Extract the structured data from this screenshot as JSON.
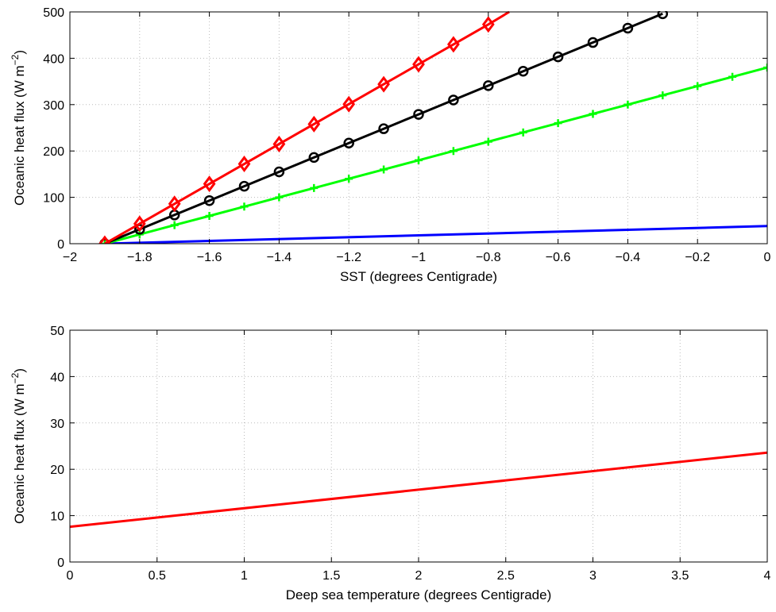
{
  "chart_data": [
    {
      "type": "line",
      "xlabel": "SST (degrees Centigrade)",
      "ylabel_main": "Oceanic heat flux (W m",
      "ylabel_sup": "−2",
      "ylabel_close": ")",
      "xlim": [
        -2,
        0
      ],
      "ylim": [
        0,
        500
      ],
      "xticks": [
        -2,
        -1.8,
        -1.6,
        -1.4,
        -1.2,
        -1,
        -0.8,
        -0.6,
        -0.4,
        -0.2,
        0
      ],
      "xtick_labels": [
        "−2",
        "−1.8",
        "−1.6",
        "−1.4",
        "−1.2",
        "−1",
        "−0.8",
        "−0.6",
        "−0.4",
        "−0.2",
        "0"
      ],
      "yticks": [
        0,
        100,
        200,
        300,
        400,
        500
      ],
      "ytick_labels": [
        "0",
        "100",
        "200",
        "300",
        "400",
        "500"
      ],
      "grid": true,
      "series": [
        {
          "color": "#0000ff",
          "marker": "none",
          "x": [
            -1.9,
            0
          ],
          "y": [
            0,
            38
          ]
        },
        {
          "color": "#00ff00",
          "marker": "plus",
          "x": [
            -1.9,
            -1.8,
            -1.7,
            -1.6,
            -1.5,
            -1.4,
            -1.3,
            -1.2,
            -1.1,
            -1.0,
            -0.9,
            -0.8,
            -0.7,
            -0.6,
            -0.5,
            -0.4,
            -0.3,
            -0.2,
            -0.1,
            0
          ],
          "y": [
            0,
            20,
            40,
            60,
            80,
            100,
            120,
            140,
            160,
            180,
            200,
            220,
            240,
            260,
            280,
            300,
            320,
            340,
            360,
            380
          ]
        },
        {
          "color": "#000000",
          "marker": "circle",
          "x": [
            -1.9,
            -1.8,
            -1.7,
            -1.6,
            -1.5,
            -1.4,
            -1.3,
            -1.2,
            -1.1,
            -1.0,
            -0.9,
            -0.8,
            -0.7,
            -0.6,
            -0.5,
            -0.4,
            -0.3
          ],
          "y": [
            0,
            31,
            62,
            93,
            124,
            155,
            186,
            217,
            248,
            279,
            310,
            341,
            372,
            403,
            434,
            465,
            496
          ]
        },
        {
          "color": "#ff0000",
          "marker": "diamond",
          "x": [
            -1.9,
            -1.8,
            -1.7,
            -1.6,
            -1.5,
            -1.4,
            -1.3,
            -1.2,
            -1.1,
            -1.0,
            -0.9,
            -0.8
          ],
          "y": [
            0,
            43,
            86,
            129,
            172,
            215,
            258,
            301,
            344,
            387,
            430,
            473
          ],
          "line_end": [
            -0.74,
            500
          ]
        }
      ]
    },
    {
      "type": "line",
      "xlabel": "Deep sea temperature (degrees Centigrade)",
      "ylabel_main": "Oceanic heat flux (W m",
      "ylabel_sup": "−2",
      "ylabel_close": ")",
      "xlim": [
        0,
        4
      ],
      "ylim": [
        0,
        50
      ],
      "xticks": [
        0,
        0.5,
        1,
        1.5,
        2,
        2.5,
        3,
        3.5,
        4
      ],
      "xtick_labels": [
        "0",
        "0.5",
        "1",
        "1.5",
        "2",
        "2.5",
        "3",
        "3.5",
        "4"
      ],
      "yticks": [
        0,
        10,
        20,
        30,
        40,
        50
      ],
      "ytick_labels": [
        "0",
        "10",
        "20",
        "30",
        "40",
        "50"
      ],
      "grid": true,
      "series": [
        {
          "color": "#ff0000",
          "marker": "none",
          "x": [
            0,
            4
          ],
          "y": [
            7.6,
            23.6
          ]
        }
      ]
    }
  ]
}
